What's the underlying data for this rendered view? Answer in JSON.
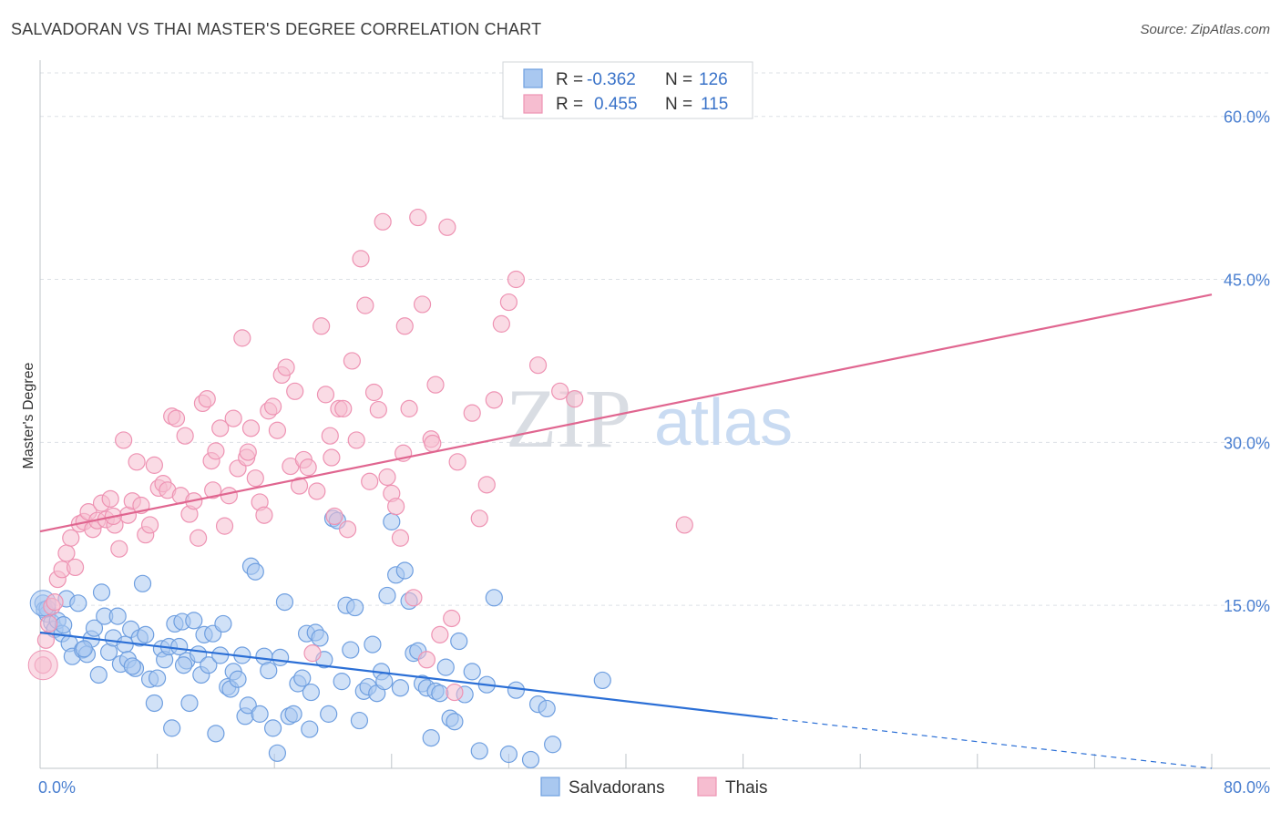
{
  "title": "SALVADORAN VS THAI MASTER'S DEGREE CORRELATION CHART",
  "source": "Source: ZipAtlas.com",
  "watermark": {
    "zip": "ZIP",
    "atlas": "atlas"
  },
  "legend": {
    "r_label": "R =",
    "n_label": "N =",
    "items": [
      {
        "r": "-0.362",
        "n": "126",
        "color": "#7aaee8"
      },
      {
        "r": "0.455",
        "n": "115",
        "color": "#f29bb8"
      }
    ]
  },
  "bottom_legend": [
    "Salvadorans",
    "Thais"
  ],
  "colors": {
    "blue_fill": "#a9c8f0",
    "blue_stroke": "#6f9fe0",
    "blue_line": "#2b6fd6",
    "pink_fill": "#f6bdd0",
    "pink_stroke": "#ee93b3",
    "pink_line": "#e06690",
    "tick": "#4a7fd0",
    "grid": "#dde1e6"
  },
  "chart_data": {
    "type": "scatter",
    "title": "SALVADORAN VS THAI MASTER'S DEGREE CORRELATION CHART",
    "xlabel": "",
    "ylabel": "Master's Degree",
    "xlim": [
      0,
      80
    ],
    "ylim": [
      0,
      64
    ],
    "x_tick_labels": [
      "0.0%",
      "80.0%"
    ],
    "y_ticks": [
      15,
      30,
      45,
      60
    ],
    "y_tick_labels": [
      "15.0%",
      "30.0%",
      "45.0%",
      "60.0%"
    ],
    "grid": true,
    "legend_position": "top-center",
    "series": [
      {
        "name": "Salvadorans",
        "r": -0.362,
        "n": 126,
        "trend": {
          "x0": 0,
          "y0": 12.5,
          "x1": 50,
          "y1": 4.6,
          "dash_to_x": 80,
          "dash_to_y": 0
        },
        "points": [
          [
            0.2,
            15.2
          ],
          [
            0.3,
            14.6
          ],
          [
            0.5,
            14.2
          ],
          [
            0.8,
            13.4
          ],
          [
            1.0,
            12.8
          ],
          [
            1.2,
            13.6
          ],
          [
            1.5,
            12.4
          ],
          [
            1.8,
            15.6
          ],
          [
            2.0,
            11.5
          ],
          [
            2.2,
            10.3
          ],
          [
            2.6,
            15.2
          ],
          [
            2.9,
            10.9
          ],
          [
            3.2,
            10.5
          ],
          [
            3.5,
            11.9
          ],
          [
            3.7,
            12.9
          ],
          [
            4.0,
            8.6
          ],
          [
            4.2,
            16.2
          ],
          [
            4.4,
            14.0
          ],
          [
            4.7,
            10.7
          ],
          [
            5.0,
            12.0
          ],
          [
            5.3,
            14.0
          ],
          [
            5.5,
            9.6
          ],
          [
            5.8,
            11.4
          ],
          [
            6.0,
            10.0
          ],
          [
            6.2,
            12.8
          ],
          [
            6.5,
            9.2
          ],
          [
            6.8,
            12.0
          ],
          [
            7.0,
            17.0
          ],
          [
            7.2,
            12.3
          ],
          [
            7.5,
            8.2
          ],
          [
            7.8,
            6.0
          ],
          [
            8.0,
            8.3
          ],
          [
            8.3,
            11.0
          ],
          [
            8.5,
            10.0
          ],
          [
            8.8,
            11.2
          ],
          [
            9.0,
            3.7
          ],
          [
            9.2,
            13.3
          ],
          [
            9.5,
            11.2
          ],
          [
            9.7,
            13.5
          ],
          [
            10.0,
            9.9
          ],
          [
            10.2,
            6.0
          ],
          [
            10.5,
            13.6
          ],
          [
            10.8,
            10.5
          ],
          [
            11.0,
            8.6
          ],
          [
            11.2,
            12.3
          ],
          [
            11.5,
            9.5
          ],
          [
            11.8,
            12.4
          ],
          [
            12.0,
            3.2
          ],
          [
            12.3,
            10.4
          ],
          [
            12.5,
            13.3
          ],
          [
            12.8,
            7.5
          ],
          [
            13.0,
            7.3
          ],
          [
            13.2,
            8.9
          ],
          [
            13.5,
            8.2
          ],
          [
            13.8,
            10.4
          ],
          [
            14.0,
            4.8
          ],
          [
            14.2,
            5.8
          ],
          [
            14.4,
            18.6
          ],
          [
            14.7,
            18.1
          ],
          [
            15.0,
            5.0
          ],
          [
            15.3,
            10.3
          ],
          [
            15.6,
            9.0
          ],
          [
            15.9,
            3.7
          ],
          [
            16.2,
            1.4
          ],
          [
            16.4,
            10.2
          ],
          [
            16.7,
            15.3
          ],
          [
            17.0,
            4.8
          ],
          [
            17.3,
            5.0
          ],
          [
            17.6,
            7.8
          ],
          [
            17.9,
            8.3
          ],
          [
            18.2,
            12.4
          ],
          [
            18.5,
            7.0
          ],
          [
            18.8,
            12.5
          ],
          [
            19.1,
            12.0
          ],
          [
            19.4,
            10.0
          ],
          [
            19.7,
            5.0
          ],
          [
            20.0,
            23.0
          ],
          [
            20.3,
            22.8
          ],
          [
            20.6,
            8.0
          ],
          [
            20.9,
            15.0
          ],
          [
            21.2,
            10.9
          ],
          [
            21.5,
            14.8
          ],
          [
            21.8,
            4.4
          ],
          [
            22.1,
            7.1
          ],
          [
            22.4,
            7.5
          ],
          [
            22.7,
            11.4
          ],
          [
            23.0,
            6.9
          ],
          [
            23.3,
            8.9
          ],
          [
            23.7,
            15.9
          ],
          [
            24.0,
            22.7
          ],
          [
            24.3,
            17.8
          ],
          [
            24.6,
            7.4
          ],
          [
            24.9,
            18.2
          ],
          [
            25.2,
            15.4
          ],
          [
            25.5,
            10.6
          ],
          [
            25.8,
            10.8
          ],
          [
            26.1,
            7.8
          ],
          [
            26.4,
            7.4
          ],
          [
            26.7,
            2.8
          ],
          [
            27.0,
            7.1
          ],
          [
            27.3,
            6.9
          ],
          [
            27.7,
            9.3
          ],
          [
            28.0,
            4.6
          ],
          [
            28.3,
            4.3
          ],
          [
            28.6,
            11.7
          ],
          [
            29.0,
            6.8
          ],
          [
            29.5,
            8.9
          ],
          [
            30.0,
            1.6
          ],
          [
            30.5,
            7.7
          ],
          [
            31.0,
            15.7
          ],
          [
            32.0,
            1.3
          ],
          [
            32.5,
            7.2
          ],
          [
            33.5,
            0.8
          ],
          [
            34.0,
            5.9
          ],
          [
            34.6,
            5.5
          ],
          [
            35.0,
            2.2
          ],
          [
            38.4,
            8.1
          ],
          [
            0.5,
            14.7
          ],
          [
            1.6,
            13.2
          ],
          [
            3.0,
            11.0
          ],
          [
            6.3,
            9.4
          ],
          [
            9.8,
            9.5
          ],
          [
            18.4,
            3.6
          ],
          [
            23.5,
            8.0
          ]
        ]
      },
      {
        "name": "Thais",
        "r": 0.455,
        "n": 115,
        "trend": {
          "x0": 0,
          "y0": 21.8,
          "x1": 80,
          "y1": 43.6
        },
        "points": [
          [
            0.2,
            9.5
          ],
          [
            0.4,
            11.8
          ],
          [
            0.6,
            13.3
          ],
          [
            0.8,
            14.9
          ],
          [
            1.0,
            15.3
          ],
          [
            1.2,
            17.4
          ],
          [
            1.5,
            18.3
          ],
          [
            1.8,
            19.8
          ],
          [
            2.1,
            21.2
          ],
          [
            2.4,
            18.5
          ],
          [
            2.7,
            22.5
          ],
          [
            3.0,
            22.7
          ],
          [
            3.3,
            23.6
          ],
          [
            3.6,
            22.0
          ],
          [
            3.9,
            22.8
          ],
          [
            4.2,
            24.4
          ],
          [
            4.5,
            22.9
          ],
          [
            4.8,
            24.8
          ],
          [
            5.1,
            22.4
          ],
          [
            5.4,
            20.2
          ],
          [
            5.7,
            30.2
          ],
          [
            6.0,
            23.3
          ],
          [
            6.3,
            24.6
          ],
          [
            6.6,
            28.2
          ],
          [
            6.9,
            24.2
          ],
          [
            7.2,
            21.5
          ],
          [
            7.5,
            22.4
          ],
          [
            7.8,
            27.9
          ],
          [
            8.1,
            25.8
          ],
          [
            8.4,
            26.2
          ],
          [
            8.7,
            25.6
          ],
          [
            9.0,
            32.4
          ],
          [
            9.3,
            32.2
          ],
          [
            9.6,
            25.1
          ],
          [
            9.9,
            30.6
          ],
          [
            10.2,
            23.4
          ],
          [
            10.5,
            24.6
          ],
          [
            10.8,
            21.2
          ],
          [
            11.1,
            33.6
          ],
          [
            11.4,
            34.0
          ],
          [
            11.7,
            28.3
          ],
          [
            12.0,
            29.2
          ],
          [
            12.3,
            31.3
          ],
          [
            12.6,
            22.3
          ],
          [
            12.9,
            25.1
          ],
          [
            13.2,
            32.2
          ],
          [
            13.5,
            27.6
          ],
          [
            13.8,
            39.6
          ],
          [
            14.1,
            28.6
          ],
          [
            14.4,
            31.3
          ],
          [
            14.7,
            26.7
          ],
          [
            15.0,
            24.5
          ],
          [
            15.3,
            23.3
          ],
          [
            15.6,
            32.9
          ],
          [
            15.9,
            33.3
          ],
          [
            16.2,
            31.1
          ],
          [
            16.5,
            36.2
          ],
          [
            16.8,
            36.9
          ],
          [
            17.1,
            27.8
          ],
          [
            17.4,
            34.7
          ],
          [
            17.7,
            26.0
          ],
          [
            18.0,
            28.4
          ],
          [
            18.3,
            27.7
          ],
          [
            18.6,
            10.6
          ],
          [
            18.9,
            25.5
          ],
          [
            19.2,
            40.7
          ],
          [
            19.5,
            34.4
          ],
          [
            19.8,
            30.6
          ],
          [
            20.1,
            23.2
          ],
          [
            20.4,
            33.1
          ],
          [
            20.7,
            33.1
          ],
          [
            21.0,
            22.0
          ],
          [
            21.3,
            37.5
          ],
          [
            21.6,
            30.2
          ],
          [
            21.9,
            46.9
          ],
          [
            22.2,
            42.6
          ],
          [
            22.5,
            26.4
          ],
          [
            22.8,
            34.6
          ],
          [
            23.1,
            33.0
          ],
          [
            23.4,
            50.3
          ],
          [
            23.7,
            26.8
          ],
          [
            24.0,
            25.3
          ],
          [
            24.3,
            24.1
          ],
          [
            24.6,
            21.2
          ],
          [
            24.9,
            40.7
          ],
          [
            25.2,
            33.1
          ],
          [
            25.5,
            15.7
          ],
          [
            25.8,
            50.7
          ],
          [
            26.1,
            42.7
          ],
          [
            26.4,
            10.0
          ],
          [
            26.7,
            30.3
          ],
          [
            27.0,
            35.3
          ],
          [
            27.3,
            12.3
          ],
          [
            27.8,
            49.8
          ],
          [
            28.5,
            28.2
          ],
          [
            29.5,
            32.7
          ],
          [
            30.5,
            26.1
          ],
          [
            31.0,
            33.9
          ],
          [
            31.5,
            40.9
          ],
          [
            32.0,
            42.9
          ],
          [
            32.5,
            45.0
          ],
          [
            34.0,
            37.1
          ],
          [
            35.5,
            34.7
          ],
          [
            36.5,
            34.0
          ],
          [
            44.0,
            22.4
          ],
          [
            5.0,
            23.2
          ],
          [
            11.8,
            25.6
          ],
          [
            14.2,
            29.1
          ],
          [
            19.9,
            28.6
          ],
          [
            24.8,
            29.0
          ],
          [
            28.1,
            13.8
          ],
          [
            28.3,
            7.0
          ],
          [
            30.0,
            23.0
          ],
          [
            26.8,
            29.9
          ]
        ]
      }
    ]
  }
}
